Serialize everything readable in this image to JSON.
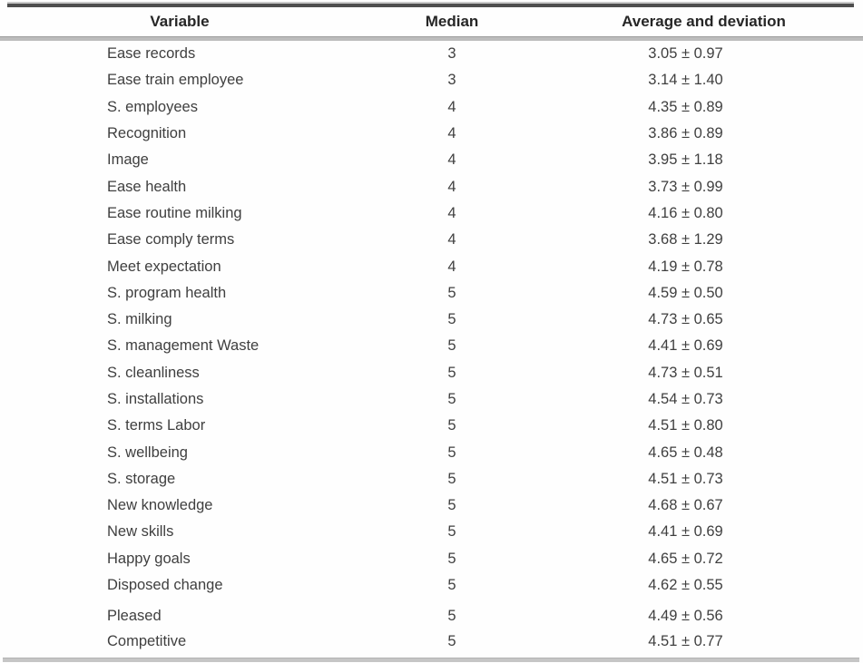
{
  "table": {
    "columns": [
      "Variable",
      "Median",
      "Average and deviation"
    ],
    "rows": [
      {
        "variable": "Ease records",
        "median": "3",
        "average": "3.05 ± 0.97"
      },
      {
        "variable": "Ease train employee",
        "median": "3",
        "average": "3.14 ± 1.40"
      },
      {
        "variable": "S. employees",
        "median": "4",
        "average": "4.35 ± 0.89"
      },
      {
        "variable": "Recognition",
        "median": "4",
        "average": "3.86 ± 0.89"
      },
      {
        "variable": "Image",
        "median": "4",
        "average": "3.95 ± 1.18"
      },
      {
        "variable": "Ease health",
        "median": "4",
        "average": "3.73 ± 0.99"
      },
      {
        "variable": "Ease routine milking",
        "median": "4",
        "average": "4.16 ± 0.80"
      },
      {
        "variable": "Ease comply terms",
        "median": "4",
        "average": "3.68 ± 1.29"
      },
      {
        "variable": "Meet expectation",
        "median": "4",
        "average": "4.19 ± 0.78"
      },
      {
        "variable": "S. program health",
        "median": "5",
        "average": "4.59 ± 0.50"
      },
      {
        "variable": "S. milking",
        "median": "5",
        "average": "4.73 ± 0.65"
      },
      {
        "variable": "S. management Waste",
        "median": "5",
        "average": "4.41 ± 0.69"
      },
      {
        "variable": "S. cleanliness",
        "median": "5",
        "average": "4.73 ± 0.51"
      },
      {
        "variable": "S. installations",
        "median": "5",
        "average": "4.54 ± 0.73"
      },
      {
        "variable": "S. terms Labor",
        "median": "5",
        "average": "4.51 ± 0.80"
      },
      {
        "variable": "S. wellbeing",
        "median": "5",
        "average": "4.65 ± 0.48"
      },
      {
        "variable": "S. storage",
        "median": "5",
        "average": "4.51 ± 0.73"
      },
      {
        "variable": "New knowledge",
        "median": "5",
        "average": "4.68 ± 0.67"
      },
      {
        "variable": "New skills",
        "median": "5",
        "average": "4.41 ± 0.69"
      },
      {
        "variable": "Happy goals",
        "median": "5",
        "average": "4.65 ± 0.72"
      },
      {
        "variable": "Disposed change",
        "median": "5",
        "average": "4.62 ± 0.55"
      },
      {
        "variable": "Pleased",
        "median": "5",
        "average": "4.49 ± 0.56",
        "group_break_before": true
      },
      {
        "variable": "Competitive",
        "median": "5",
        "average": "4.51 ± 0.77"
      }
    ]
  }
}
